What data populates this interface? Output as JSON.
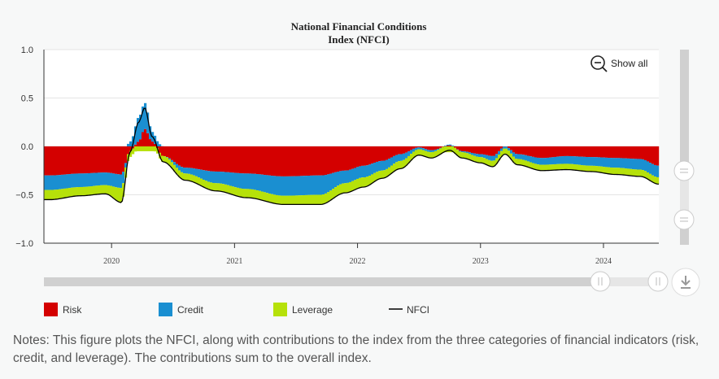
{
  "chart_data": {
    "type": "area",
    "title_line1": "National Financial Conditions",
    "title_line2": "Index (NFCI)",
    "ylim": [
      -1.0,
      1.0
    ],
    "yticks": [
      1.0,
      0.5,
      0.0,
      -0.5,
      -1.0
    ],
    "ytick_labels": [
      "1.0",
      "0.5",
      "0.0",
      "−0.5",
      "−1.0"
    ],
    "xlim": [
      2019.45,
      2024.45
    ],
    "xticks": [
      2020,
      2021,
      2022,
      2023,
      2024
    ],
    "xtick_labels": [
      "2020",
      "2021",
      "2022",
      "2023",
      "2024"
    ],
    "grid": true,
    "legend_position": "bottom",
    "series": [
      {
        "name": "Risk",
        "color": "#d40000",
        "kind": "stacked-bar",
        "x": [
          2019.5,
          2019.75,
          2019.95,
          2020.08,
          2020.15,
          2020.22,
          2020.27,
          2020.33,
          2020.42,
          2020.6,
          2020.85,
          2021.1,
          2021.4,
          2021.7,
          2021.9,
          2022.05,
          2022.2,
          2022.35,
          2022.5,
          2022.6,
          2022.75,
          2022.85,
          2023.0,
          2023.1,
          2023.2,
          2023.3,
          2023.5,
          2023.7,
          2023.9,
          2024.1,
          2024.3,
          2024.45
        ],
        "values": [
          -0.3,
          -0.28,
          -0.27,
          -0.29,
          -0.05,
          0.05,
          0.18,
          0.05,
          -0.1,
          -0.22,
          -0.26,
          -0.28,
          -0.31,
          -0.3,
          -0.25,
          -0.2,
          -0.15,
          -0.08,
          -0.01,
          -0.04,
          0.01,
          -0.05,
          -0.08,
          -0.1,
          0.0,
          -0.08,
          -0.12,
          -0.1,
          -0.11,
          -0.12,
          -0.13,
          -0.2
        ]
      },
      {
        "name": "Credit",
        "color": "#1a8fd1",
        "kind": "stacked-bar",
        "x": [
          2019.5,
          2019.75,
          2019.95,
          2020.08,
          2020.15,
          2020.22,
          2020.27,
          2020.33,
          2020.42,
          2020.6,
          2020.85,
          2021.1,
          2021.4,
          2021.7,
          2021.9,
          2022.05,
          2022.2,
          2022.35,
          2022.5,
          2022.6,
          2022.75,
          2022.85,
          2023.0,
          2023.1,
          2023.2,
          2023.3,
          2023.5,
          2023.7,
          2023.9,
          2024.1,
          2024.3,
          2024.45
        ],
        "values": [
          -0.15,
          -0.14,
          -0.13,
          -0.14,
          0.05,
          0.25,
          0.27,
          0.1,
          0.0,
          -0.06,
          -0.12,
          -0.16,
          -0.2,
          -0.2,
          -0.13,
          -0.12,
          -0.1,
          -0.07,
          -0.02,
          -0.02,
          0.01,
          -0.01,
          -0.03,
          -0.05,
          -0.02,
          -0.05,
          -0.07,
          -0.08,
          -0.09,
          -0.1,
          -0.11,
          -0.12
        ]
      },
      {
        "name": "Leverage",
        "color": "#b6e10a",
        "kind": "stacked-bar",
        "x": [
          2019.5,
          2019.75,
          2019.95,
          2020.08,
          2020.15,
          2020.22,
          2020.27,
          2020.33,
          2020.42,
          2020.6,
          2020.85,
          2021.1,
          2021.4,
          2021.7,
          2021.9,
          2022.05,
          2022.2,
          2022.35,
          2022.5,
          2022.6,
          2022.75,
          2022.85,
          2023.0,
          2023.1,
          2023.2,
          2023.3,
          2023.5,
          2023.7,
          2023.9,
          2024.1,
          2024.3,
          2024.45
        ],
        "values": [
          -0.1,
          -0.09,
          -0.09,
          -0.15,
          -0.06,
          -0.05,
          -0.05,
          -0.05,
          -0.06,
          -0.07,
          -0.08,
          -0.09,
          -0.09,
          -0.1,
          -0.1,
          -0.1,
          -0.08,
          -0.08,
          -0.06,
          -0.06,
          -0.06,
          -0.06,
          -0.06,
          -0.06,
          -0.06,
          -0.06,
          -0.06,
          -0.06,
          -0.06,
          -0.07,
          -0.07,
          -0.07
        ]
      },
      {
        "name": "NFCI",
        "color": "#000000",
        "kind": "line",
        "x": [
          2019.5,
          2019.75,
          2019.95,
          2020.08,
          2020.15,
          2020.22,
          2020.27,
          2020.33,
          2020.42,
          2020.6,
          2020.85,
          2021.1,
          2021.4,
          2021.7,
          2021.9,
          2022.05,
          2022.2,
          2022.35,
          2022.5,
          2022.6,
          2022.75,
          2022.85,
          2023.0,
          2023.1,
          2023.2,
          2023.3,
          2023.5,
          2023.7,
          2023.9,
          2024.1,
          2024.3,
          2024.45
        ],
        "values": [
          -0.55,
          -0.51,
          -0.49,
          -0.58,
          -0.06,
          0.25,
          0.4,
          0.1,
          -0.16,
          -0.35,
          -0.46,
          -0.53,
          -0.6,
          -0.6,
          -0.48,
          -0.42,
          -0.33,
          -0.23,
          -0.09,
          -0.12,
          -0.04,
          -0.12,
          -0.17,
          -0.21,
          -0.08,
          -0.19,
          -0.25,
          -0.24,
          -0.26,
          -0.29,
          -0.31,
          -0.39
        ]
      }
    ]
  },
  "controls": {
    "show_all_label": "Show all"
  },
  "notes": "Notes: This figure plots the NFCI, along with contributions to the index from the three categories of financial indicators (risk, credit, and leverage). The contributions sum to the overall index."
}
